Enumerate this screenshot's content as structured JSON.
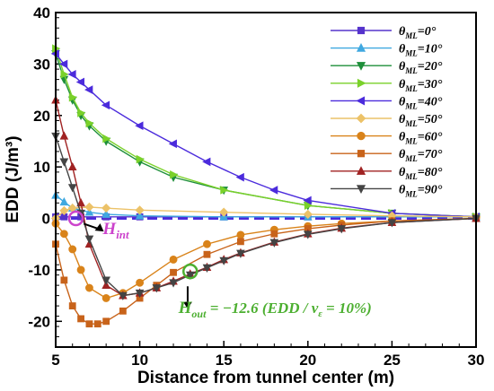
{
  "chart_data": {
    "type": "line",
    "xlabel": "Distance from tunnel center (m)",
    "ylabel": "EDD (J/m³)",
    "xlim": [
      5,
      30
    ],
    "ylim": [
      -25,
      40
    ],
    "xticks": [
      5,
      10,
      15,
      20,
      25,
      30
    ],
    "yticks": [
      -20,
      -10,
      0,
      10,
      20,
      30,
      40
    ],
    "legend_position": "top-right",
    "reference_line": {
      "y": 0,
      "color": "#4b2bdc",
      "style": "dashed"
    },
    "series": [
      {
        "name": "θML=0°",
        "sym": "θ",
        "sub": "ML",
        "val": "=0°",
        "color": "#5533cc",
        "marker": "square",
        "x": [
          5,
          5.5,
          6.5,
          8,
          10,
          15,
          20,
          25,
          30
        ],
        "y": [
          0.3,
          0.3,
          0.3,
          0.3,
          0.3,
          0.3,
          0.3,
          0.3,
          0.3
        ]
      },
      {
        "name": "θML=10°",
        "sym": "θ",
        "sub": "ML",
        "val": "=10°",
        "color": "#3fa8e0",
        "marker": "triangle-up",
        "x": [
          5,
          5.5,
          6,
          7,
          8,
          10,
          15,
          20,
          25,
          30
        ],
        "y": [
          4.5,
          3.2,
          2.0,
          1.2,
          0.8,
          0.5,
          0.3,
          0.3,
          0.3,
          0.3
        ]
      },
      {
        "name": "θML=20°",
        "sym": "θ",
        "sub": "ML",
        "val": "=20°",
        "color": "#1e8f3a",
        "marker": "triangle-down",
        "x": [
          5,
          5.5,
          6,
          6.5,
          7,
          8,
          10,
          12,
          15,
          20,
          25,
          30
        ],
        "y": [
          32,
          27,
          23,
          20,
          18,
          15,
          11,
          8,
          5.5,
          2.5,
          1.0,
          0.3
        ]
      },
      {
        "name": "θML=30°",
        "sym": "θ",
        "sub": "ML",
        "val": "=30°",
        "color": "#7ad12a",
        "marker": "triangle-right",
        "x": [
          5,
          5.5,
          6,
          6.5,
          7,
          8,
          10,
          12,
          15,
          20,
          25,
          30
        ],
        "y": [
          33,
          28,
          23.5,
          20.5,
          18.5,
          15.5,
          11.5,
          8.5,
          5.5,
          2.5,
          1.0,
          0.3
        ]
      },
      {
        "name": "θML=40°",
        "sym": "θ",
        "sub": "ML",
        "val": "=40°",
        "color": "#4b2bdc",
        "marker": "triangle-left",
        "x": [
          5,
          5.5,
          6,
          6.5,
          7,
          8,
          10,
          12,
          14,
          16,
          18,
          20,
          25,
          30
        ],
        "y": [
          32,
          30,
          28,
          26.5,
          25,
          22,
          18,
          14.5,
          11,
          8,
          5.5,
          3.5,
          1.0,
          0.3
        ]
      },
      {
        "name": "θML=50°",
        "sym": "θ",
        "sub": "ML",
        "val": "=50°",
        "color": "#ecc268",
        "marker": "diamond",
        "x": [
          5,
          5.5,
          6,
          7,
          8,
          10,
          15,
          20,
          25,
          30
        ],
        "y": [
          0,
          1.5,
          2.0,
          2.2,
          2.0,
          1.6,
          1.2,
          0.8,
          0.5,
          0.3
        ]
      },
      {
        "name": "θML=60°",
        "sym": "θ",
        "sub": "ML",
        "val": "=60°",
        "color": "#d9831a",
        "marker": "circle",
        "x": [
          5,
          5.5,
          6,
          6.5,
          7,
          8,
          9,
          10,
          12,
          14,
          16,
          18,
          20,
          22,
          25,
          30
        ],
        "y": [
          -1,
          -3,
          -6,
          -10,
          -13.5,
          -15.5,
          -14.5,
          -12.5,
          -8,
          -5,
          -3.2,
          -2.2,
          -1.5,
          -1.0,
          -0.5,
          0
        ]
      },
      {
        "name": "θML=70°",
        "sym": "θ",
        "sub": "ML",
        "val": "=70°",
        "color": "#c8631a",
        "marker": "square",
        "x": [
          5,
          5.5,
          6,
          6.5,
          7,
          7.5,
          8,
          9,
          10,
          11,
          12,
          14,
          16,
          18,
          20,
          22,
          25,
          30
        ],
        "y": [
          -5,
          -12,
          -17,
          -19.5,
          -20.5,
          -20.5,
          -20,
          -18,
          -15.5,
          -13,
          -10.5,
          -7,
          -4.5,
          -3,
          -2,
          -1.3,
          -0.5,
          0
        ]
      },
      {
        "name": "θML=80°",
        "sym": "θ",
        "sub": "ML",
        "val": "=80°",
        "color": "#a02222",
        "marker": "triangle-up",
        "x": [
          5,
          5.5,
          6,
          6.5,
          7,
          8,
          9,
          10,
          11,
          12,
          13,
          14,
          15,
          16,
          18,
          20,
          22,
          25,
          30
        ],
        "y": [
          23,
          16,
          10,
          3,
          -5,
          -13,
          -15,
          -14.5,
          -13.5,
          -12.2,
          -10.8,
          -9.5,
          -8,
          -6.7,
          -4.6,
          -3,
          -1.9,
          -0.8,
          0
        ]
      },
      {
        "name": "θML=90°",
        "sym": "θ",
        "sub": "ML",
        "val": "=90°",
        "color": "#444444",
        "marker": "triangle-down",
        "x": [
          5,
          5.5,
          6,
          6.5,
          7,
          8,
          9,
          10,
          11,
          12,
          13,
          14,
          15,
          16,
          18,
          20,
          22,
          25,
          30
        ],
        "y": [
          16,
          11,
          6,
          1,
          -4,
          -12,
          -15,
          -14.5,
          -13.5,
          -12.5,
          -11,
          -9.6,
          -8.2,
          -6.8,
          -4.7,
          -3.1,
          -2.0,
          -0.8,
          0
        ]
      }
    ],
    "annotations": [
      {
        "id": "hint",
        "main": "H",
        "sub": "int",
        "text": "",
        "color": "#cc44cc",
        "x": 6.2,
        "y": 0,
        "label_x": 7.8,
        "label_y": -3
      },
      {
        "id": "hout",
        "main": "H",
        "sub": "out",
        "text": " = −12.6  (EDD / v",
        "sub2": "ε",
        "text2": " = 10%)",
        "color": "#4caf30",
        "x": 13,
        "y": -10.3,
        "label_x": 12.3,
        "label_y": -17
      }
    ]
  }
}
